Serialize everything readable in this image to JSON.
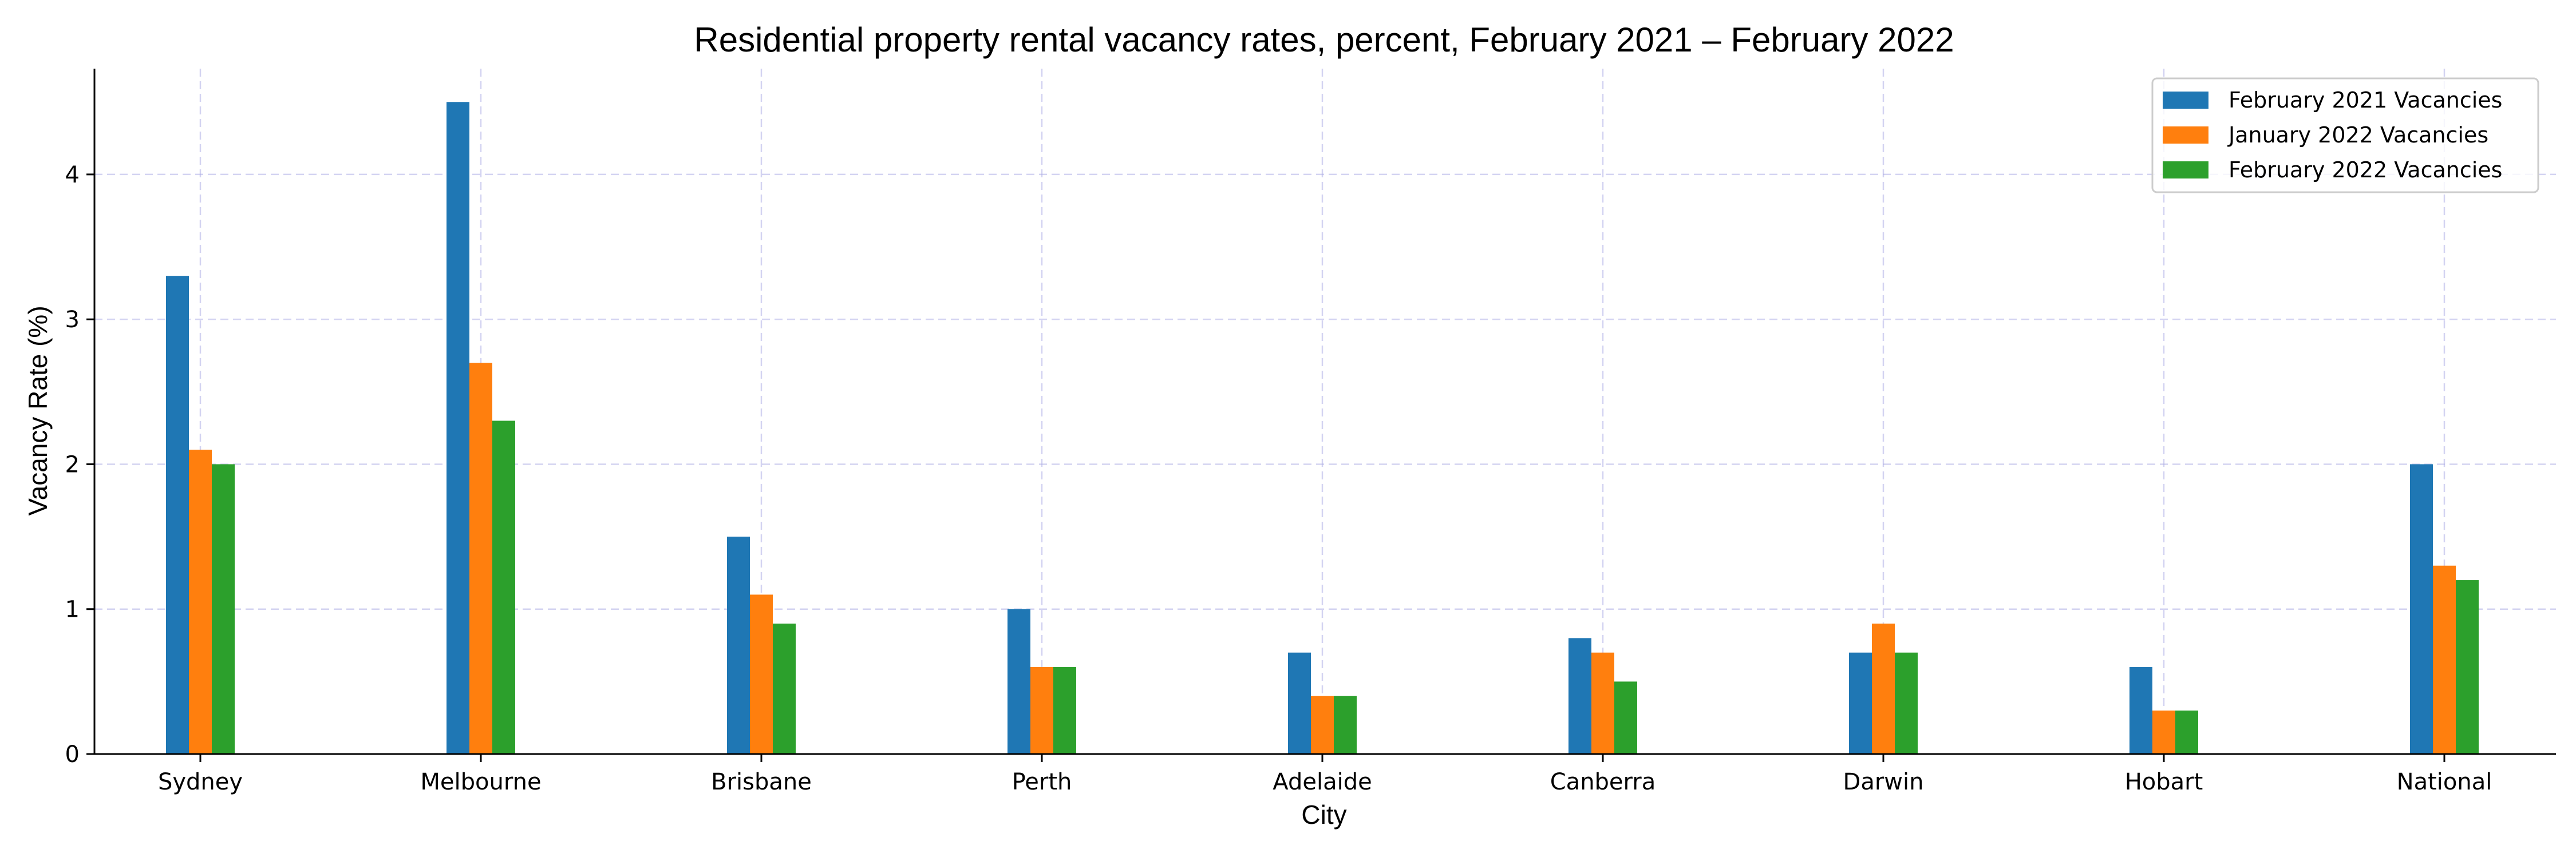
{
  "chart_data": {
    "type": "bar",
    "title": "Residential property rental vacancy rates, percent, February 2021 – February 2022",
    "xlabel": "City",
    "ylabel": "Vacancy Rate (%)",
    "categories": [
      "Sydney",
      "Melbourne",
      "Brisbane",
      "Perth",
      "Adelaide",
      "Canberra",
      "Darwin",
      "Hobart",
      "National"
    ],
    "series": [
      {
        "name": "February 2021 Vacancies",
        "color": "#1f77b4",
        "values": [
          3.3,
          4.5,
          1.5,
          1.0,
          0.7,
          0.8,
          0.7,
          0.6,
          2.0
        ]
      },
      {
        "name": "January 2022 Vacancies",
        "color": "#ff7f0e",
        "values": [
          2.1,
          2.7,
          1.1,
          0.6,
          0.4,
          0.7,
          0.9,
          0.3,
          1.3
        ]
      },
      {
        "name": "February 2022 Vacancies",
        "color": "#2ca02c",
        "values": [
          2.0,
          2.3,
          0.9,
          0.6,
          0.4,
          0.5,
          0.7,
          0.3,
          1.2
        ]
      }
    ],
    "ylim": [
      0,
      4.73
    ],
    "yticks": [
      "0",
      "1",
      "2",
      "3",
      "4"
    ],
    "grid": true,
    "grid_color": "#b0b0e6",
    "legend_position": "top-right"
  }
}
